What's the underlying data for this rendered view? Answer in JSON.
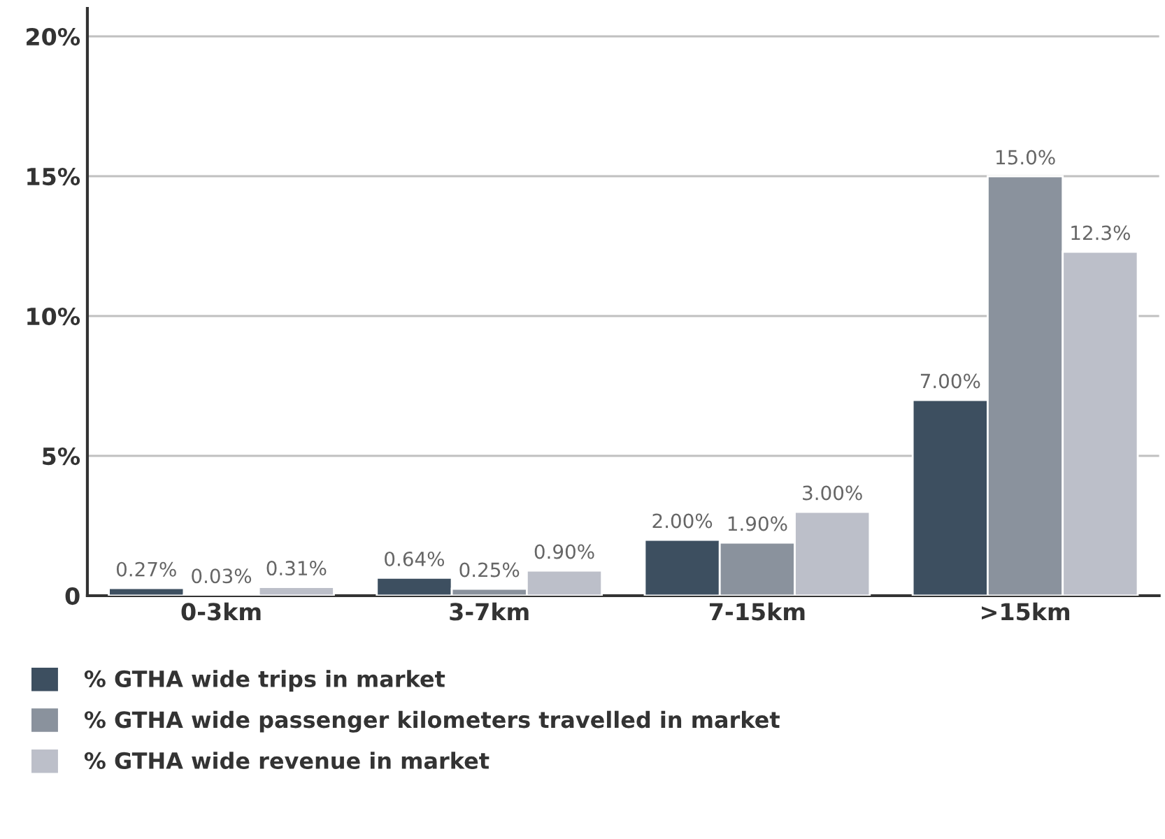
{
  "chart_data": {
    "type": "bar",
    "categories": [
      "0-3km",
      "3-7km",
      "7-15km",
      ">15km"
    ],
    "series": [
      {
        "name": "% GTHA wide trips in market",
        "color": "#3d4f60",
        "values": [
          0.27,
          0.64,
          2.0,
          7.0
        ],
        "value_labels": [
          "0.27%",
          "0.64%",
          "2.00%",
          "7.00%"
        ]
      },
      {
        "name": "% GTHA wide passenger kilometers travelled in market",
        "color": "#8a929d",
        "values": [
          0.03,
          0.25,
          1.9,
          15.0
        ],
        "value_labels": [
          "0.03%",
          "0.25%",
          "1.90%",
          "15.0%"
        ]
      },
      {
        "name": "% GTHA wide revenue in market",
        "color": "#bcbfc9",
        "values": [
          0.31,
          0.9,
          3.0,
          12.3
        ],
        "value_labels": [
          "0.31%",
          "0.90%",
          "3.00%",
          "12.3%"
        ]
      }
    ],
    "ylim": [
      0,
      21
    ],
    "yticks": [
      0,
      {
        "value": 5,
        "label": "5%"
      },
      {
        "value": 10,
        "label": "10%"
      },
      {
        "value": 15,
        "label": "15%"
      },
      {
        "value": 20,
        "label": "20%"
      }
    ],
    "grid": "y",
    "legend": "bottom"
  }
}
